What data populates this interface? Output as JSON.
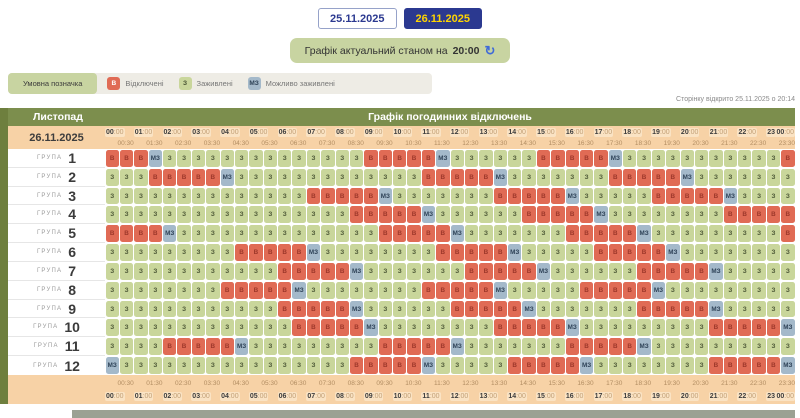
{
  "page": {
    "tabs": [
      {
        "label": "25.11.2025",
        "active": false
      },
      {
        "label": "26.11.2025",
        "active": true
      }
    ],
    "status": {
      "prefix": "Графік актуальний станом на",
      "time": "20:00",
      "refresh_icon": "↻"
    },
    "legend": {
      "title": "Умовна позначка",
      "items": [
        {
          "code": "В",
          "label": "Відключені",
          "type": "v"
        },
        {
          "code": "З",
          "label": "Заживлені",
          "type": "z"
        },
        {
          "code": "МЗ",
          "label": "Можливо заживлені",
          "type": "m"
        }
      ]
    },
    "opened_note": "Сторінку відкрито 25.11.2025 о 20:14"
  },
  "table": {
    "month": "Листопад",
    "title": "Графік погодинних відключень",
    "date": "26.11.2025",
    "group_label": "ГРУПА",
    "timeline": {
      "hours": [
        "00:00",
        "01:00",
        "02:00",
        "03:00",
        "04:00",
        "05:00",
        "06:00",
        "07:00",
        "08:00",
        "09:00",
        "10:00",
        "11:00",
        "12:00",
        "13:00",
        "14:00",
        "15:00",
        "16:00",
        "17:00",
        "18:00",
        "19:00",
        "20:00",
        "21:00",
        "22:00",
        "23:00"
      ],
      "halves": [
        "00:30",
        "01:30",
        "02:30",
        "03:30",
        "04:30",
        "05:30",
        "06:30",
        "07:30",
        "08:30",
        "09:30",
        "10:30",
        "11:30",
        "12:30",
        "13:30",
        "14:30",
        "15:30",
        "16:30",
        "17:30",
        "18:30",
        "19:30",
        "20:30",
        "21:30",
        "22:30",
        "23:30"
      ],
      "end": "00:00"
    },
    "cell_types": {
      "V": "В",
      "Z": "З",
      "M": "МЗ"
    },
    "groups": [
      {
        "number": "1",
        "cells": "VVVMZZZZZZZZZZZZZZVVVVVMZZZZZZVVVVVMZZZZZZZZZZZV"
      },
      {
        "number": "2",
        "cells": "ZZZVVVVVMZZZZZZZZZZZZZVVVVVMZZZZZZZVVVVVMZZZZZZZ"
      },
      {
        "number": "3",
        "cells": "ZZZZZZZZZZZZZZVVVVVMZZZZZZZVVVVVMZZZZZVVVVVMZZZZ"
      },
      {
        "number": "4",
        "cells": "ZZZZZZZZZZZZZZZZZVVVVVMZZZZZZVVVVVMZZZZZZZZVVVVV"
      },
      {
        "number": "5",
        "cells": "VVVVMZZZZZZZZZZZZZZVVVVVMZZZZZZZVVVVVMZZZZZZZZZV"
      },
      {
        "number": "6",
        "cells": "ZZZZZZZZZVVVVVMZZZZZZZZVVVVVMZZZZZVVVVVMZZZZZZZZ"
      },
      {
        "number": "7",
        "cells": "ZZZZZZZZZZZZVVVVVMZZZZZZZVVVVVMZZZZZZVVVVVMZZZZZ"
      },
      {
        "number": "8",
        "cells": "ZZZZZZZZVVVVVMZZZZZZZZVVVVVMZZZZZVVVVVMZZZZZZZZZ"
      },
      {
        "number": "9",
        "cells": "ZZZZZZZZZZZZVVVVVMZZZZZZVVVVVMZZZZZZZVVVVVMZZZZZ"
      },
      {
        "number": "10",
        "cells": "ZZZZZZZZZZZZZVVVVVMZZZZZZZZVVVVVMZZZZZZZZZVVVVVM"
      },
      {
        "number": "11",
        "cells": "ZZZZVVVVVMZZZZZZZZZVVVVVMZZZZZZZVVVVVMZZZZZZZZZZ"
      },
      {
        "number": "12",
        "cells": "MZZZZZZZZZZZZZZZZVVVVVMZZZZZVVVVVMZZZZZZZZVVVVVM"
      }
    ]
  },
  "colors": {
    "off_red": "#e06b55",
    "on_green": "#c9d69b",
    "maybe_blue": "#a4b9ca",
    "header_olive": "#7c8e4d",
    "header_peach": "#f7d2a6",
    "tab_active_bg": "#2b3990",
    "tab_active_text": "#ffd500",
    "status_pill": "#c8d4a1"
  }
}
